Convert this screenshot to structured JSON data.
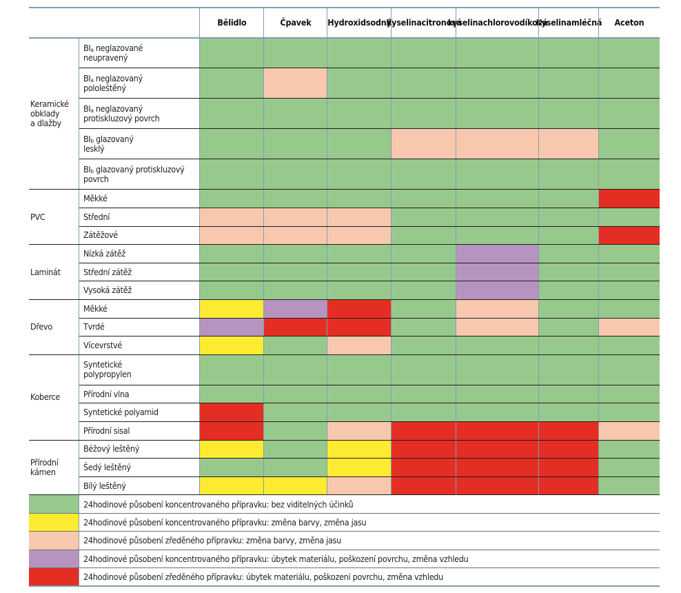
{
  "chart_data": {
    "type": "heatmap",
    "title": "",
    "columns": [
      "Bělidlo",
      "Čpavek",
      "Hydroxid sodný",
      "Kyselina citronová",
      "kyselina chlorovodíková",
      "Kyselina mléčná",
      "Aceton"
    ],
    "column_lines": [
      [
        "Bělidlo"
      ],
      [
        "Čpavek"
      ],
      [
        "Hydroxid",
        "sodný"
      ],
      [
        "Kyselina",
        "citronová"
      ],
      [
        "kyselina",
        "chlorovodíková"
      ],
      [
        "Kyselina",
        "mléčná"
      ],
      [
        "Aceton"
      ]
    ],
    "legend_colors": {
      "G": "#98c98c",
      "Y": "#fdeb32",
      "P": "#f8c8ae",
      "V": "#b794c0",
      "R": "#e52e23"
    },
    "legend": [
      {
        "key": "G",
        "label": "24hodinové působení koncentrovaného přípravku: bez viditelných účinků"
      },
      {
        "key": "Y",
        "label": "24hodinové působení koncentrovaného přípravku: změna barvy, změna jasu"
      },
      {
        "key": "P",
        "label": "24hodinové působení zředěného přípravku: změna barvy, změna jasu"
      },
      {
        "key": "V",
        "label": "24hodinové působení koncentrovaného přípravku: úbytek materiálu, poškození povrchu, změna vzhledu"
      },
      {
        "key": "R",
        "label": "24hodinové působení zředěného přípravku: úbytek materiálu, poškození povrchu, změna vzhledu"
      }
    ],
    "groups": [
      {
        "name_lines": [
          "Keramické",
          "obklady",
          "a dlažby"
        ],
        "rows": [
          {
            "label_lines": [
              {
                "pre": "BI",
                "sub": "a",
                "post": " neglazované"
              },
              {
                "pre": "neupravený"
              }
            ],
            "values": [
              "G",
              "G",
              "G",
              "G",
              "G",
              "G",
              "G"
            ]
          },
          {
            "label_lines": [
              {
                "pre": "BI",
                "sub": "a",
                "post": " neglazovaný"
              },
              {
                "pre": "pololeštěný"
              }
            ],
            "values": [
              "G",
              "P",
              "G",
              "G",
              "G",
              "G",
              "G"
            ]
          },
          {
            "label_lines": [
              {
                "pre": "BI",
                "sub": "a",
                "post": " neglazovaný"
              },
              {
                "pre": "protiskluzový povrch"
              }
            ],
            "values": [
              "G",
              "G",
              "G",
              "G",
              "G",
              "G",
              "G"
            ]
          },
          {
            "label_lines": [
              {
                "pre": "BI",
                "sub": "b",
                "post": " glazovaný"
              },
              {
                "pre": "lesklý"
              }
            ],
            "values": [
              "G",
              "G",
              "G",
              "P",
              "P",
              "P",
              "G"
            ]
          },
          {
            "label_lines": [
              {
                "pre": "BI",
                "sub": "b",
                "post": " glazovaný protiskluzový"
              },
              {
                "pre": "povrch"
              }
            ],
            "values": [
              "G",
              "G",
              "G",
              "G",
              "G",
              "G",
              "G"
            ]
          }
        ]
      },
      {
        "name_lines": [
          "PVC"
        ],
        "rows": [
          {
            "label_lines": [
              {
                "pre": "Měkké"
              }
            ],
            "values": [
              "G",
              "G",
              "G",
              "G",
              "G",
              "G",
              "R"
            ]
          },
          {
            "label_lines": [
              {
                "pre": "Střední"
              }
            ],
            "values": [
              "P",
              "P",
              "P",
              "G",
              "G",
              "G",
              "G"
            ]
          },
          {
            "label_lines": [
              {
                "pre": "Zátěžové"
              }
            ],
            "values": [
              "P",
              "P",
              "P",
              "G",
              "G",
              "G",
              "R"
            ]
          }
        ]
      },
      {
        "name_lines": [
          "Laminát"
        ],
        "rows": [
          {
            "label_lines": [
              {
                "pre": "Nízká zátěž"
              }
            ],
            "values": [
              "G",
              "G",
              "G",
              "G",
              "V",
              "G",
              "G"
            ]
          },
          {
            "label_lines": [
              {
                "pre": "Střední zátěž"
              }
            ],
            "values": [
              "G",
              "G",
              "G",
              "G",
              "V",
              "G",
              "G"
            ]
          },
          {
            "label_lines": [
              {
                "pre": "Vysoká zátěž"
              }
            ],
            "values": [
              "G",
              "G",
              "G",
              "G",
              "V",
              "G",
              "G"
            ]
          }
        ]
      },
      {
        "name_lines": [
          "Dřevo"
        ],
        "rows": [
          {
            "label_lines": [
              {
                "pre": "Měkké"
              }
            ],
            "values": [
              "Y",
              "V",
              "R",
              "G",
              "P",
              "G",
              "G"
            ]
          },
          {
            "label_lines": [
              {
                "pre": "Tvrdé"
              }
            ],
            "values": [
              "V",
              "R",
              "R",
              "G",
              "P",
              "G",
              "P"
            ]
          },
          {
            "label_lines": [
              {
                "pre": "Vícevrstvé"
              }
            ],
            "values": [
              "Y",
              "G",
              "P",
              "G",
              "G",
              "G",
              "G"
            ]
          }
        ]
      },
      {
        "name_lines": [
          "Koberce"
        ],
        "rows": [
          {
            "label_lines": [
              {
                "pre": "Syntetické"
              },
              {
                "pre": "polypropylen"
              }
            ],
            "values": [
              "G",
              "G",
              "G",
              "G",
              "G",
              "G",
              "G"
            ]
          },
          {
            "label_lines": [
              {
                "pre": "Přírodní vlna"
              }
            ],
            "values": [
              "G",
              "G",
              "G",
              "G",
              "G",
              "G",
              "G"
            ]
          },
          {
            "label_lines": [
              {
                "pre": "Syntetické polyamid"
              }
            ],
            "values": [
              "R",
              "G",
              "G",
              "G",
              "G",
              "G",
              "G"
            ]
          },
          {
            "label_lines": [
              {
                "pre": "Přírodní sisal"
              }
            ],
            "values": [
              "R",
              "G",
              "P",
              "R",
              "R",
              "R",
              "P"
            ]
          }
        ]
      },
      {
        "name_lines": [
          "Přírodní",
          "kámen"
        ],
        "rows": [
          {
            "label_lines": [
              {
                "pre": "Béžový leštěný"
              }
            ],
            "values": [
              "Y",
              "G",
              "Y",
              "R",
              "R",
              "R",
              "G"
            ]
          },
          {
            "label_lines": [
              {
                "pre": "Šedý leštěný"
              }
            ],
            "values": [
              "G",
              "G",
              "Y",
              "R",
              "R",
              "R",
              "G"
            ]
          },
          {
            "label_lines": [
              {
                "pre": "Bílý leštěný"
              }
            ],
            "values": [
              "Y",
              "Y",
              "P",
              "R",
              "R",
              "R",
              "G"
            ]
          }
        ]
      }
    ]
  }
}
